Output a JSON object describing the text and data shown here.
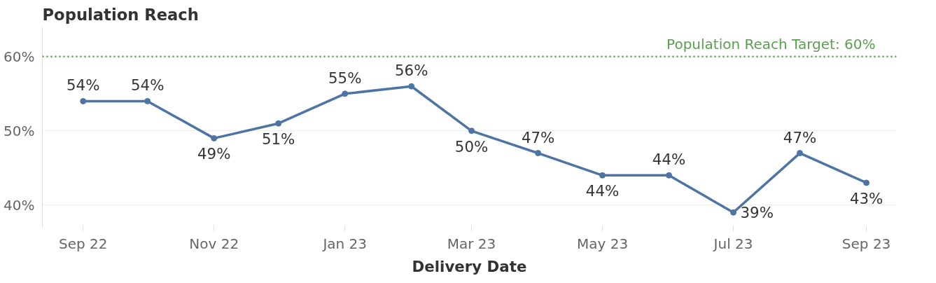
{
  "chart_data": {
    "type": "line",
    "title": "Population Reach",
    "xlabel": "Delivery Date",
    "x": [
      "2022-09",
      "2022-10",
      "2022-11",
      "2022-12",
      "2023-01",
      "2023-02",
      "2023-03",
      "2023-04",
      "2023-05",
      "2023-06",
      "2023-07",
      "2023-08",
      "2023-09"
    ],
    "series": [
      {
        "color": "#4e74a3",
        "values": [
          54,
          54,
          49,
          51,
          55,
          56,
          50,
          47,
          44,
          44,
          39,
          47,
          43
        ]
      }
    ],
    "value_labels": [
      "54%",
      "54%",
      "49%",
      "51%",
      "55%",
      "56%",
      "50%",
      "47%",
      "44%",
      "44%",
      "39%",
      "47%",
      "43%"
    ],
    "xlim": [
      "2022-08-13",
      "2023-09-15"
    ],
    "xticks": [
      {
        "value": "2022-09",
        "label": "Sep 22"
      },
      {
        "value": "2022-11",
        "label": "Nov 22"
      },
      {
        "value": "2023-01",
        "label": "Jan 23"
      },
      {
        "value": "2023-03",
        "label": "Mar 23"
      },
      {
        "value": "2023-05",
        "label": "May 23"
      },
      {
        "value": "2023-07",
        "label": "Jul 23"
      },
      {
        "value": "2023-09",
        "label": "Sep 23"
      }
    ],
    "ylim": [
      37,
      64
    ],
    "yticks": [
      {
        "value": 40,
        "label": "40%"
      },
      {
        "value": 50,
        "label": "50%"
      },
      {
        "value": 60,
        "label": "60%"
      }
    ],
    "ref_lines": [
      {
        "axis": "y",
        "value": 60,
        "label": "Population Reach Target: 60%",
        "color": "#59a14f",
        "line_style": "dotted"
      }
    ],
    "grid": "y",
    "marker": "circle",
    "line_style": "solid"
  }
}
